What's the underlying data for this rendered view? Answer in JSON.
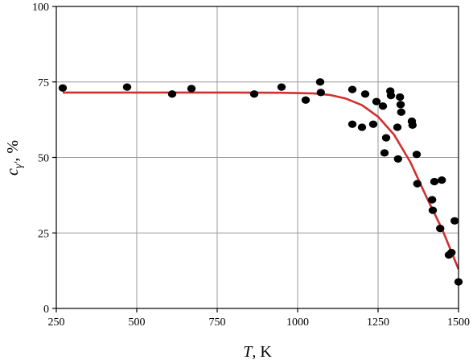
{
  "chart_data": {
    "type": "scatter",
    "xlabel_var": "T",
    "xlabel_unit": ", K",
    "ylabel_var": "c",
    "ylabel_sub": "γ'",
    "ylabel_unit": ", %",
    "xlim": [
      250,
      1500
    ],
    "ylim": [
      0,
      100
    ],
    "xticks": [
      250,
      500,
      750,
      1000,
      1250,
      1500
    ],
    "yticks": [
      0,
      25,
      50,
      75,
      100
    ],
    "grid": true,
    "series": [
      {
        "kind": "points",
        "color": "#000000",
        "points": [
          [
            270,
            73
          ],
          [
            470,
            73.3
          ],
          [
            610,
            71
          ],
          [
            670,
            72.8
          ],
          [
            865,
            71
          ],
          [
            950,
            73.3
          ],
          [
            1025,
            69
          ],
          [
            1070,
            75
          ],
          [
            1072,
            71.5
          ],
          [
            1170,
            72.5
          ],
          [
            1170,
            61
          ],
          [
            1200,
            60
          ],
          [
            1210,
            71
          ],
          [
            1235,
            61
          ],
          [
            1245,
            68.5
          ],
          [
            1265,
            67
          ],
          [
            1270,
            51.5
          ],
          [
            1275,
            56.5
          ],
          [
            1288,
            72
          ],
          [
            1290,
            70.5
          ],
          [
            1310,
            60
          ],
          [
            1312,
            49.5
          ],
          [
            1318,
            70
          ],
          [
            1320,
            67.5
          ],
          [
            1322,
            65
          ],
          [
            1355,
            62
          ],
          [
            1357,
            60.7
          ],
          [
            1370,
            51
          ],
          [
            1372,
            41.3
          ],
          [
            1418,
            36
          ],
          [
            1420,
            32.5
          ],
          [
            1425,
            42
          ],
          [
            1443,
            26.5
          ],
          [
            1448,
            42.5
          ],
          [
            1470,
            17.7
          ],
          [
            1478,
            18.5
          ],
          [
            1488,
            29
          ],
          [
            1500,
            8.8
          ]
        ]
      },
      {
        "kind": "fit-curve",
        "color": "#d03030",
        "points": [
          [
            270,
            71.5
          ],
          [
            400,
            71.5
          ],
          [
            600,
            71.5
          ],
          [
            800,
            71.5
          ],
          [
            950,
            71.4
          ],
          [
            1050,
            71.2
          ],
          [
            1100,
            70.7
          ],
          [
            1150,
            69.5
          ],
          [
            1200,
            67.3
          ],
          [
            1250,
            63.5
          ],
          [
            1300,
            57.5
          ],
          [
            1350,
            48.5
          ],
          [
            1400,
            37
          ],
          [
            1450,
            26
          ],
          [
            1500,
            13
          ]
        ]
      }
    ]
  }
}
